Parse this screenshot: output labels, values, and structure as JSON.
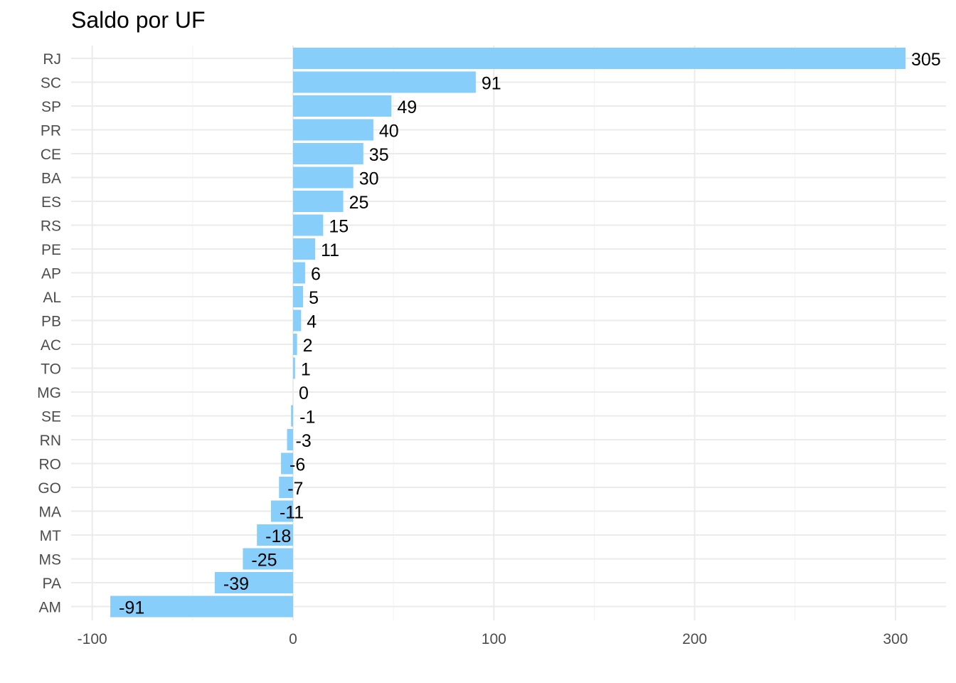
{
  "chart_data": {
    "type": "bar",
    "orientation": "horizontal",
    "title": "Saldo por UF",
    "xlabel": "",
    "ylabel": "",
    "categories": [
      "RJ",
      "SC",
      "SP",
      "PR",
      "CE",
      "BA",
      "ES",
      "RS",
      "PE",
      "AP",
      "AL",
      "PB",
      "AC",
      "TO",
      "MG",
      "SE",
      "RN",
      "RO",
      "GO",
      "MA",
      "MT",
      "MS",
      "PA",
      "AM"
    ],
    "values": [
      305,
      91,
      49,
      40,
      35,
      30,
      25,
      15,
      11,
      6,
      5,
      4,
      2,
      1,
      0,
      -1,
      -3,
      -6,
      -7,
      -11,
      -18,
      -25,
      -39,
      -91
    ],
    "xlim": [
      -100,
      320
    ],
    "xticks": [
      -100,
      0,
      100,
      200,
      300
    ],
    "grid": true,
    "legend": "none",
    "colors": {
      "bar": "#87CEFA",
      "grid_major": "#ebebeb",
      "grid_minor": "#f2f2f2",
      "text": "#000000",
      "axis_text": "#4d4d4d"
    }
  }
}
